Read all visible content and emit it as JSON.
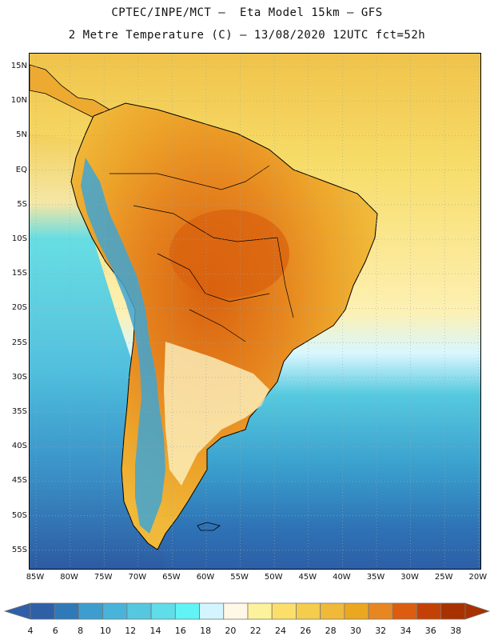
{
  "header": {
    "title_line1": "CPTEC/INPE/MCT –  Eta Model 15km – GFS",
    "title_line2": "2 Metre Temperature (C) – 13/08/2020 12UTC fct=52h"
  },
  "map": {
    "lat_labels": [
      "15N",
      "10N",
      "5N",
      "EQ",
      "5S",
      "10S",
      "15S",
      "20S",
      "25S",
      "30S",
      "35S",
      "40S",
      "45S",
      "50S",
      "55S"
    ],
    "lon_labels": [
      "85W",
      "80W",
      "75W",
      "70W",
      "65W",
      "60W",
      "55W",
      "50W",
      "45W",
      "40W",
      "35W",
      "30W",
      "25W",
      "20W"
    ],
    "ocean_color": "#f2c84a",
    "continent_outline": "#000000"
  },
  "colorbar": {
    "labels": [
      "4",
      "6",
      "8",
      "10",
      "12",
      "14",
      "16",
      "18",
      "20",
      "22",
      "24",
      "26",
      "28",
      "30",
      "32",
      "34",
      "36",
      "38"
    ],
    "colors": [
      "#2f5fa7",
      "#2e79b8",
      "#3c9dce",
      "#49b4d9",
      "#55c8e0",
      "#5fdde8",
      "#61f4f7",
      "#d2f5ff",
      "#fff8e6",
      "#fdf29c",
      "#fbdf6a",
      "#f4cc4e",
      "#f0b93a",
      "#eba71f",
      "#e88722",
      "#dc5d10",
      "#c34105",
      "#a83100"
    ]
  }
}
